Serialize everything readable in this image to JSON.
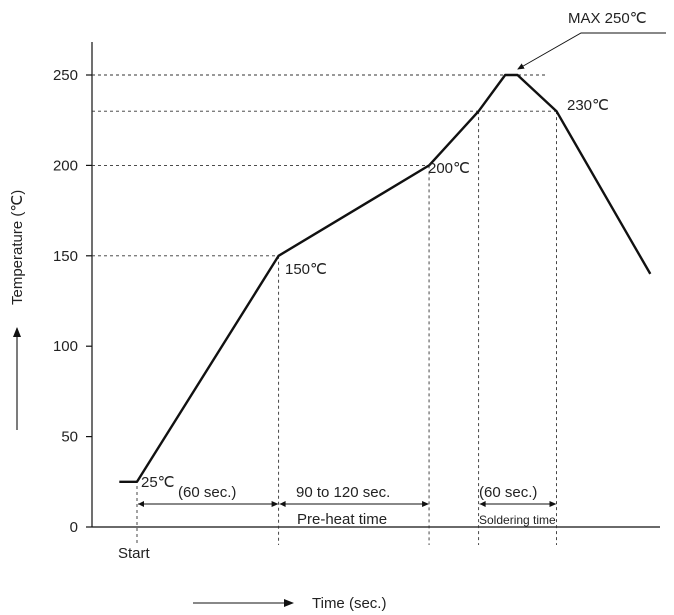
{
  "chart_data": {
    "type": "line",
    "title": "",
    "ylabel": "Temperature (℃)",
    "xlabel": "Time (sec.)",
    "ylim": [
      0,
      260
    ],
    "yticks": [
      0,
      50,
      100,
      150,
      200,
      250
    ],
    "ytick_labels": [
      "0",
      "50",
      "100",
      "150",
      "200",
      "250"
    ],
    "grid": false,
    "series": [
      {
        "points": [
          {
            "x": -10,
            "y": 25
          },
          {
            "x": 0,
            "y": 25
          },
          {
            "x": 80,
            "y": 150
          },
          {
            "x": 165,
            "y": 200
          },
          {
            "x": 193,
            "y": 230
          },
          {
            "x": 208,
            "y": 250
          },
          {
            "x": 215,
            "y": 250
          },
          {
            "x": 237,
            "y": 230
          },
          {
            "x": 290,
            "y": 140
          }
        ]
      }
    ],
    "vertical_markers_x": [
      0,
      80,
      165,
      193,
      237
    ],
    "labels": {
      "start": "Start",
      "t25": "25℃",
      "t150": "150℃",
      "t200": "200℃",
      "t230": "230℃",
      "max": "MAX 250℃",
      "seg1": "(60 sec.)",
      "seg2": "90 to 120 sec.",
      "seg3": "(60 sec.)",
      "preheat": "Pre-heat time",
      "soldering": "Soldering time"
    }
  }
}
